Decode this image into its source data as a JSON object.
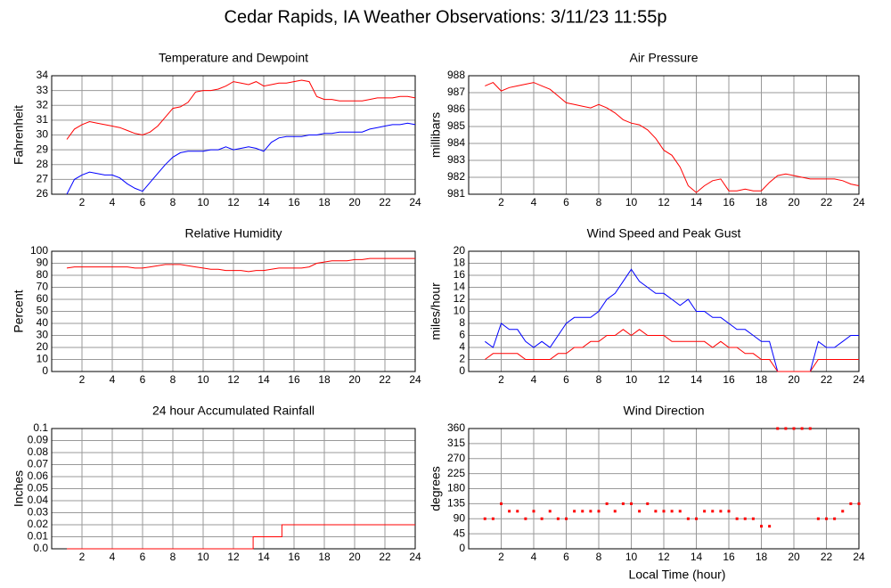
{
  "title": "Cedar Rapids, IA Weather Observations: 3/11/23 11:55p",
  "xlabel": "Local Time (hour)",
  "chart_data": [
    {
      "type": "line",
      "title": "Temperature and Dewpoint",
      "ylabel": "Fahrenheit",
      "xlim": [
        0,
        24
      ],
      "xticks": [
        2,
        4,
        6,
        8,
        10,
        12,
        14,
        16,
        18,
        20,
        22,
        24
      ],
      "ylim": [
        26,
        34
      ],
      "yticks": [
        26,
        27,
        28,
        29,
        30,
        31,
        32,
        33,
        34
      ],
      "grid": true,
      "x": [
        1,
        1.5,
        2,
        2.5,
        3,
        3.5,
        4,
        4.5,
        5,
        5.5,
        6,
        6.5,
        7,
        7.5,
        8,
        8.5,
        9,
        9.5,
        10,
        10.5,
        11,
        11.5,
        12,
        12.5,
        13,
        13.5,
        14,
        14.5,
        15,
        15.5,
        16,
        16.5,
        17,
        17.5,
        18,
        18.5,
        19,
        19.5,
        20,
        20.5,
        21,
        21.5,
        22,
        22.5,
        23,
        23.5,
        24
      ],
      "series": [
        {
          "color": "#ff0000",
          "values": [
            29.7,
            30.4,
            30.7,
            30.9,
            30.8,
            30.7,
            30.6,
            30.5,
            30.3,
            30.1,
            30.0,
            30.2,
            30.6,
            31.2,
            31.8,
            31.9,
            32.2,
            32.9,
            33.0,
            33.0,
            33.1,
            33.3,
            33.6,
            33.5,
            33.4,
            33.6,
            33.3,
            33.4,
            33.5,
            33.5,
            33.6,
            33.7,
            33.6,
            32.6,
            32.4,
            32.4,
            32.3,
            32.3,
            32.3,
            32.3,
            32.4,
            32.5,
            32.5,
            32.5,
            32.6,
            32.6,
            32.5
          ]
        },
        {
          "color": "#0000ff",
          "values": [
            26.0,
            27.0,
            27.3,
            27.5,
            27.4,
            27.3,
            27.3,
            27.1,
            26.7,
            26.4,
            26.2,
            26.8,
            27.4,
            28.0,
            28.5,
            28.8,
            28.9,
            28.9,
            28.9,
            29.0,
            29.0,
            29.2,
            29.0,
            29.1,
            29.2,
            29.1,
            28.9,
            29.5,
            29.8,
            29.9,
            29.9,
            29.9,
            30.0,
            30.0,
            30.1,
            30.1,
            30.2,
            30.2,
            30.2,
            30.2,
            30.4,
            30.5,
            30.6,
            30.7,
            30.7,
            30.8,
            30.7
          ]
        }
      ]
    },
    {
      "type": "line",
      "title": "Air Pressure",
      "ylabel": "millibars",
      "xlim": [
        0,
        24
      ],
      "xticks": [
        2,
        4,
        6,
        8,
        10,
        12,
        14,
        16,
        18,
        20,
        22,
        24
      ],
      "ylim": [
        981,
        988
      ],
      "yticks": [
        981,
        982,
        983,
        984,
        985,
        986,
        987,
        988
      ],
      "grid": true,
      "x": [
        1,
        1.5,
        2,
        2.5,
        3,
        3.5,
        4,
        4.5,
        5,
        5.5,
        6,
        6.5,
        7,
        7.5,
        8,
        8.5,
        9,
        9.5,
        10,
        10.5,
        11,
        11.5,
        12,
        12.5,
        13,
        13.5,
        14,
        14.5,
        15,
        15.5,
        16,
        16.5,
        17,
        17.5,
        18,
        18.5,
        19,
        19.5,
        20,
        20.5,
        21,
        21.5,
        22,
        22.5,
        23,
        23.5,
        24
      ],
      "series": [
        {
          "color": "#ff0000",
          "values": [
            987.4,
            987.6,
            987.1,
            987.3,
            987.4,
            987.5,
            987.6,
            987.4,
            987.2,
            986.8,
            986.4,
            986.3,
            986.2,
            986.1,
            986.3,
            986.1,
            985.8,
            985.4,
            985.2,
            985.1,
            984.8,
            984.3,
            983.6,
            983.3,
            982.6,
            981.5,
            981.1,
            981.5,
            981.8,
            981.9,
            981.2,
            981.2,
            981.3,
            981.2,
            981.2,
            981.7,
            982.1,
            982.2,
            982.1,
            982.0,
            981.9,
            981.9,
            981.9,
            981.9,
            981.8,
            981.6,
            981.5
          ]
        }
      ]
    },
    {
      "type": "line",
      "title": "Relative Humidity",
      "ylabel": "Percent",
      "xlim": [
        0,
        24
      ],
      "xticks": [
        2,
        4,
        6,
        8,
        10,
        12,
        14,
        16,
        18,
        20,
        22,
        24
      ],
      "ylim": [
        0,
        100
      ],
      "yticks": [
        0,
        10,
        20,
        30,
        40,
        50,
        60,
        70,
        80,
        90,
        100
      ],
      "grid": true,
      "x": [
        1,
        1.5,
        2,
        2.5,
        3,
        3.5,
        4,
        4.5,
        5,
        5.5,
        6,
        6.5,
        7,
        7.5,
        8,
        8.5,
        9,
        9.5,
        10,
        10.5,
        11,
        11.5,
        12,
        12.5,
        13,
        13.5,
        14,
        14.5,
        15,
        15.5,
        16,
        16.5,
        17,
        17.5,
        18,
        18.5,
        19,
        19.5,
        20,
        20.5,
        21,
        21.5,
        22,
        22.5,
        23,
        23.5,
        24
      ],
      "series": [
        {
          "color": "#ff0000",
          "values": [
            86,
            87,
            87,
            87,
            87,
            87,
            87,
            87,
            87,
            86,
            86,
            87,
            88,
            89,
            89,
            89,
            88,
            87,
            86,
            85,
            85,
            84,
            84,
            84,
            83,
            84,
            84,
            85,
            86,
            86,
            86,
            86,
            87,
            90,
            91,
            92,
            92,
            92,
            93,
            93,
            94,
            94,
            94,
            94,
            94,
            94,
            94
          ]
        }
      ]
    },
    {
      "type": "line",
      "title": "Wind Speed and Peak Gust",
      "ylabel": "miles/hour",
      "xlim": [
        0,
        24
      ],
      "xticks": [
        2,
        4,
        6,
        8,
        10,
        12,
        14,
        16,
        18,
        20,
        22,
        24
      ],
      "ylim": [
        0,
        20
      ],
      "yticks": [
        0,
        2,
        4,
        6,
        8,
        10,
        12,
        14,
        16,
        18,
        20
      ],
      "grid": true,
      "x": [
        1,
        1.5,
        2,
        2.5,
        3,
        3.5,
        4,
        4.5,
        5,
        5.5,
        6,
        6.5,
        7,
        7.5,
        8,
        8.5,
        9,
        9.5,
        10,
        10.5,
        11,
        11.5,
        12,
        12.5,
        13,
        13.5,
        14,
        14.5,
        15,
        15.5,
        16,
        16.5,
        17,
        17.5,
        18,
        18.5,
        19,
        19.5,
        20,
        20.5,
        21,
        21.5,
        22,
        22.5,
        23,
        23.5,
        24
      ],
      "series": [
        {
          "color": "#0000ff",
          "values": [
            5,
            4,
            8,
            7,
            7,
            5,
            4,
            5,
            4,
            6,
            8,
            9,
            9,
            9,
            10,
            12,
            13,
            15,
            17,
            15,
            14,
            13,
            13,
            12,
            11,
            12,
            10,
            10,
            9,
            9,
            8,
            7,
            7,
            6,
            5,
            5,
            0,
            0,
            0,
            0,
            0,
            5,
            4,
            4,
            5,
            6,
            6
          ]
        },
        {
          "color": "#ff0000",
          "values": [
            2,
            3,
            3,
            3,
            3,
            2,
            2,
            2,
            2,
            3,
            3,
            4,
            4,
            5,
            5,
            6,
            6,
            7,
            6,
            7,
            6,
            6,
            6,
            5,
            5,
            5,
            5,
            5,
            4,
            5,
            4,
            4,
            3,
            3,
            2,
            2,
            0,
            0,
            0,
            0,
            0,
            2,
            2,
            2,
            2,
            2,
            2
          ]
        }
      ]
    },
    {
      "type": "line",
      "title": "24 hour Accumulated Rainfall",
      "ylabel": "Inches",
      "xlim": [
        0,
        24
      ],
      "xticks": [
        2,
        4,
        6,
        8,
        10,
        12,
        14,
        16,
        18,
        20,
        22,
        24
      ],
      "ylim": [
        0,
        0.1
      ],
      "yticks": [
        {
          "value": 0,
          "label": "0.0"
        },
        0.01,
        0.02,
        0.03,
        0.04,
        0.05,
        0.06,
        0.07,
        0.08,
        0.09,
        0.1
      ],
      "grid": true,
      "x": [
        1,
        13.3,
        13.3,
        15.2,
        15.2,
        24
      ],
      "series": [
        {
          "color": "#ff0000",
          "values": [
            0,
            0,
            0.01,
            0.01,
            0.02,
            0.02
          ]
        }
      ]
    },
    {
      "type": "scatter",
      "title": "Wind Direction",
      "ylabel": "degrees",
      "xlim": [
        0,
        24
      ],
      "xticks": [
        2,
        4,
        6,
        8,
        10,
        12,
        14,
        16,
        18,
        20,
        22,
        24
      ],
      "ylim": [
        0,
        360
      ],
      "yticks": [
        0,
        45,
        90,
        135,
        180,
        225,
        270,
        315,
        360
      ],
      "grid": true,
      "x": [
        1,
        1.5,
        2,
        2.5,
        3,
        3.5,
        4,
        4.5,
        5,
        5.5,
        6,
        6.5,
        7,
        7.5,
        8,
        8.5,
        9,
        9.5,
        10,
        10.5,
        11,
        11.5,
        12,
        12.5,
        13,
        13.5,
        14,
        14.5,
        15,
        15.5,
        16,
        16.5,
        17,
        17.5,
        18,
        18.5,
        19,
        19.5,
        20,
        20.5,
        21,
        21.5,
        22,
        22.5,
        23,
        23.5,
        24
      ],
      "series": [
        {
          "color": "#ff0000",
          "values": [
            90,
            90,
            135,
            112.5,
            112.5,
            90,
            112.5,
            90,
            112.5,
            90,
            90,
            112.5,
            112.5,
            112.5,
            112.5,
            135,
            112.5,
            135,
            135,
            112.5,
            135,
            112.5,
            112.5,
            112.5,
            112.5,
            90,
            90,
            112.5,
            112.5,
            112.5,
            112.5,
            90,
            90,
            90,
            67.5,
            67.5,
            360,
            360,
            360,
            360,
            360,
            90,
            90,
            90,
            112.5,
            135,
            135
          ]
        }
      ]
    }
  ]
}
